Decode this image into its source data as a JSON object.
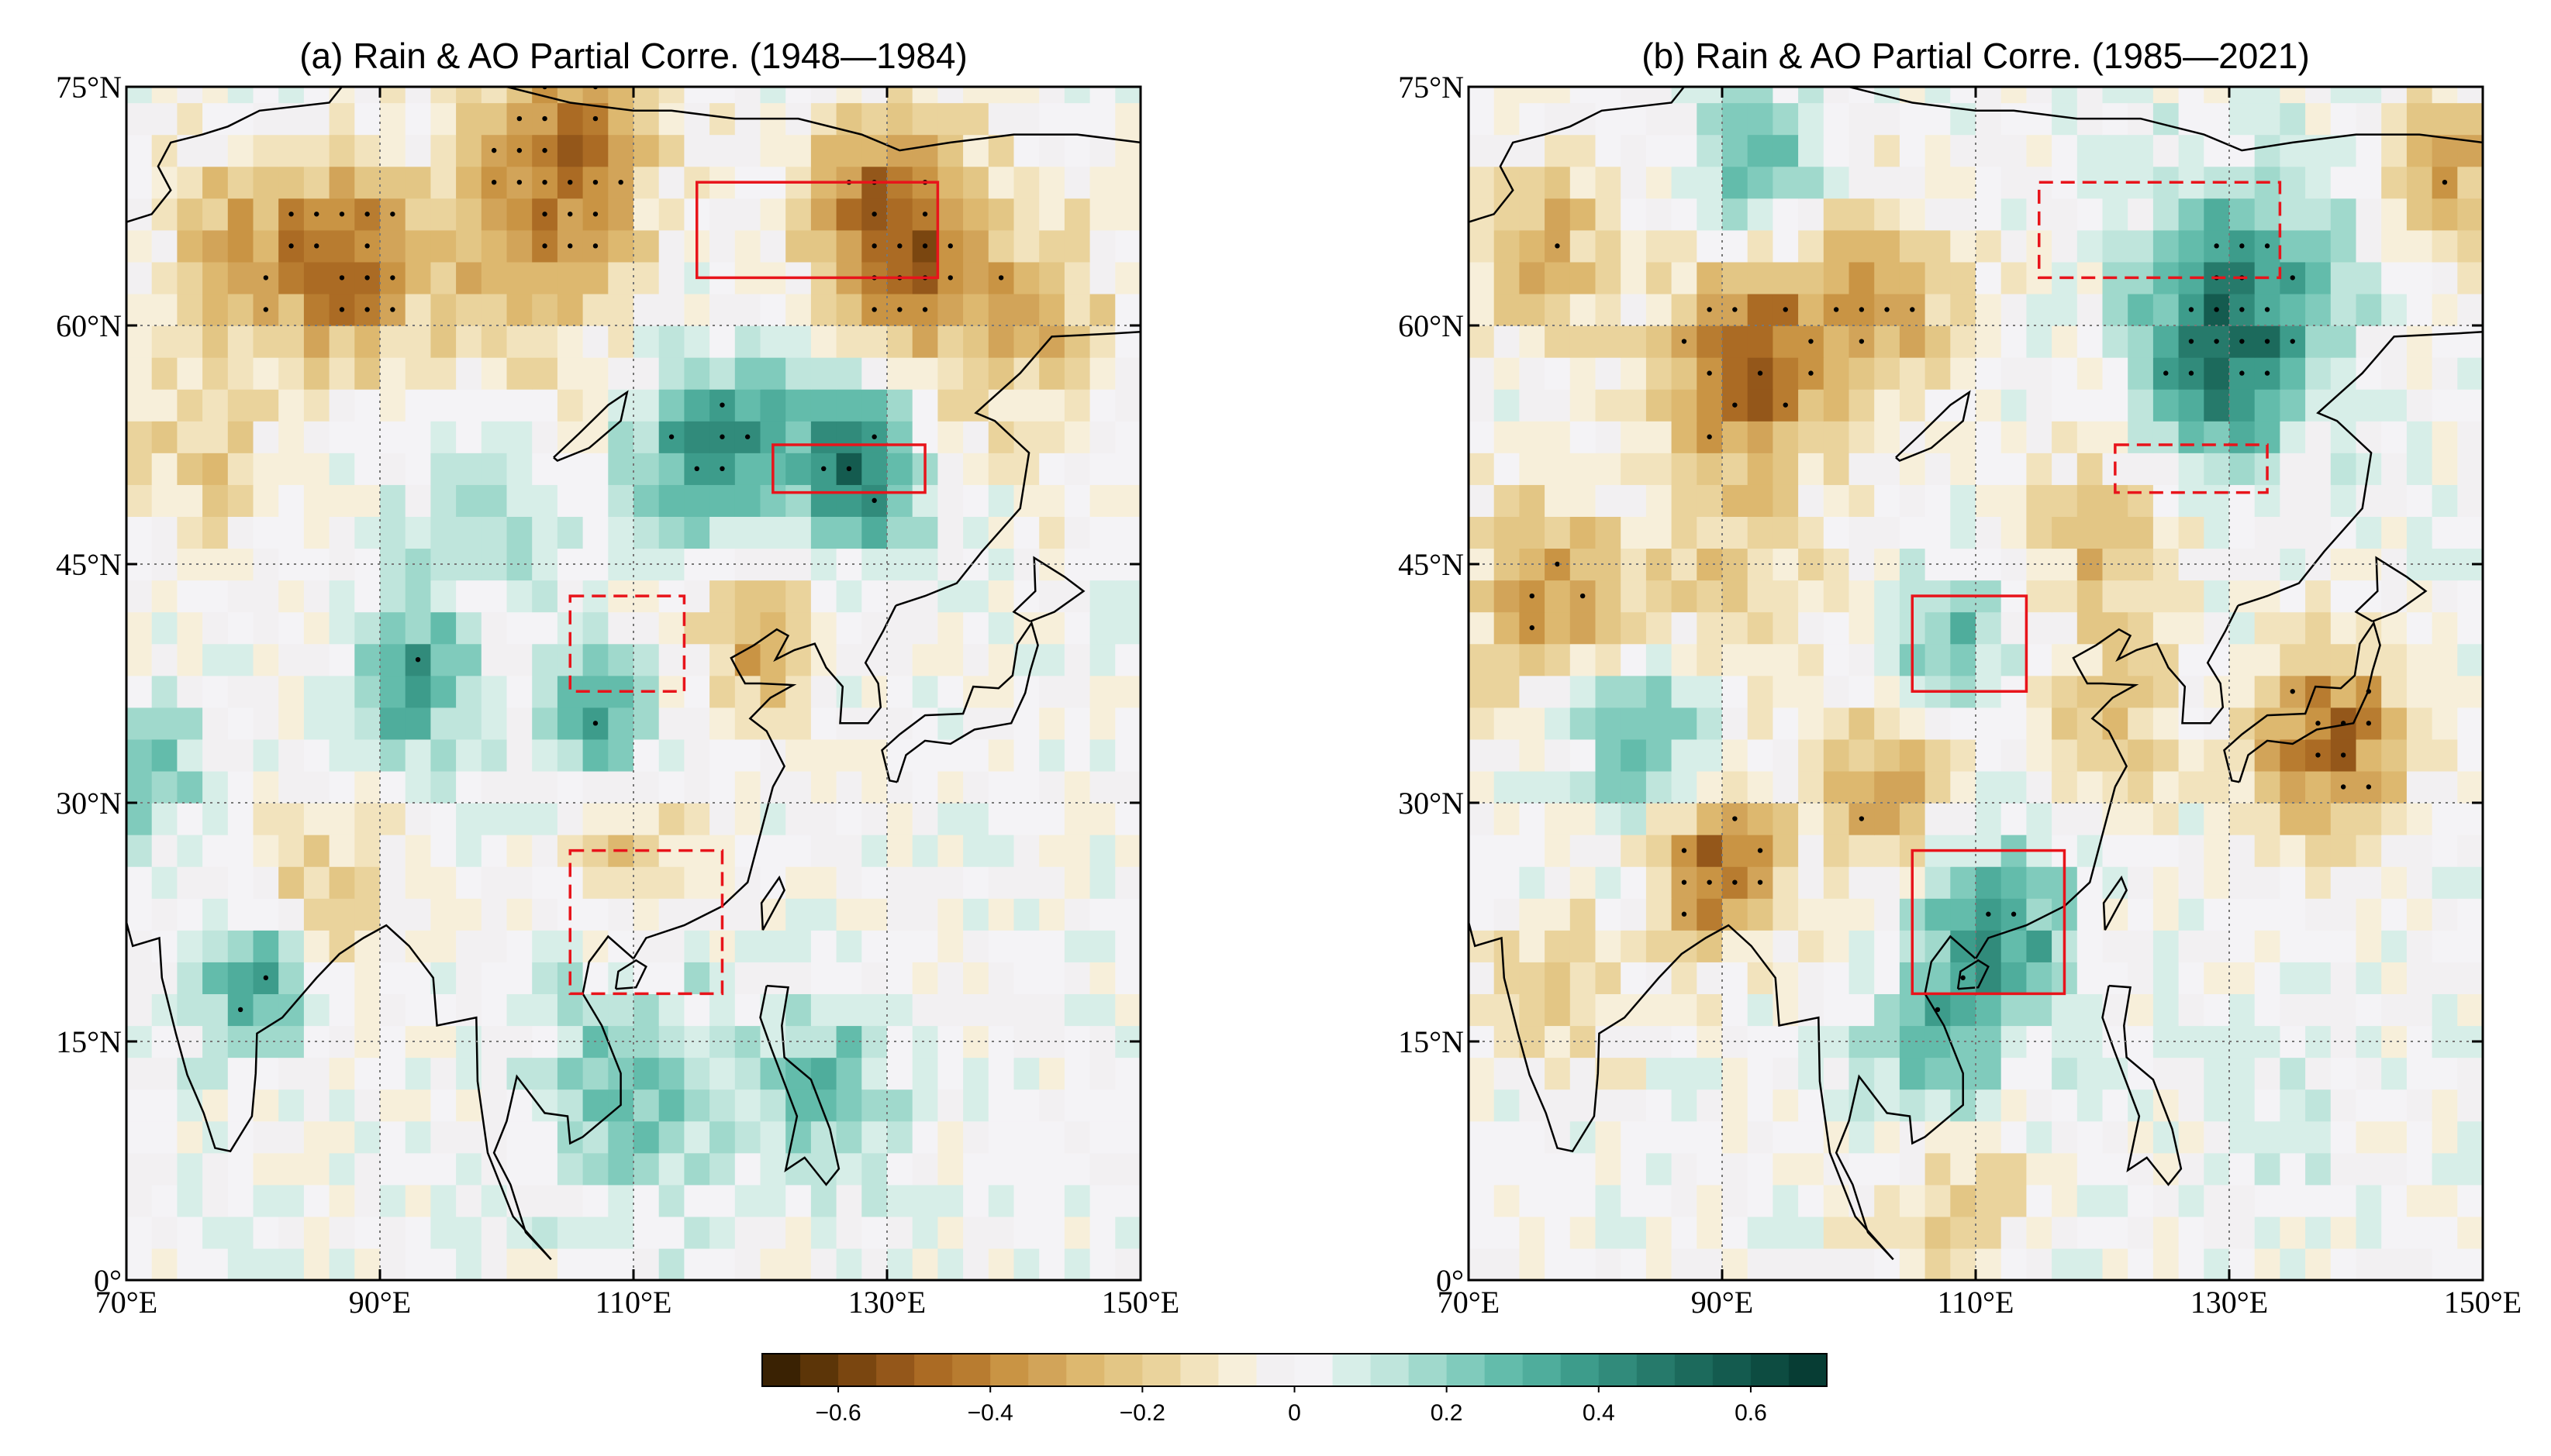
{
  "chart_data": [
    {
      "type": "heatmap",
      "panel": "a",
      "title": "(a) Rain & AO Partial Corre. (1948—1984)",
      "xlim": [
        70,
        150
      ],
      "ylim": [
        0,
        75
      ],
      "xticks": [
        70,
        90,
        110,
        130,
        150
      ],
      "xtick_labels": [
        "70°E",
        "90°E",
        "110°E",
        "130°E",
        "150°E"
      ],
      "yticks": [
        0,
        15,
        30,
        45,
        60,
        75
      ],
      "ytick_labels": [
        "0°",
        "15°N",
        "30°N",
        "45°N",
        "60°N",
        "75°N"
      ],
      "grid": true,
      "regions": [
        {
          "lon": [
            115,
            134
          ],
          "lat": [
            63,
            69
          ],
          "style": "solid"
        },
        {
          "lon": [
            121,
            133
          ],
          "lat": [
            49.5,
            52.5
          ],
          "style": "solid"
        },
        {
          "lon": [
            105,
            114
          ],
          "lat": [
            37,
            43
          ],
          "style": "dashed"
        },
        {
          "lon": [
            105,
            117
          ],
          "lat": [
            18,
            27
          ],
          "style": "dashed"
        }
      ],
      "anomalies": [
        {
          "lon": 130,
          "lat": 66,
          "r": 7,
          "v": -0.5
        },
        {
          "lon": 87,
          "lat": 64,
          "r": 6,
          "v": -0.45
        },
        {
          "lon": 105,
          "lat": 71,
          "r": 7,
          "v": -0.45
        },
        {
          "lon": 78,
          "lat": 65,
          "r": 6,
          "v": -0.25
        },
        {
          "lon": 100,
          "lat": 63,
          "r": 8,
          "v": -0.2
        },
        {
          "lon": 140,
          "lat": 60,
          "r": 8,
          "v": -0.25
        },
        {
          "lon": 76,
          "lat": 52,
          "r": 6,
          "v": -0.2
        },
        {
          "lon": 128,
          "lat": 51,
          "r": 5,
          "v": 0.5
        },
        {
          "lon": 115,
          "lat": 51,
          "r": 5,
          "v": 0.35
        },
        {
          "lon": 92,
          "lat": 38,
          "r": 5,
          "v": 0.35
        },
        {
          "lon": 81,
          "lat": 19,
          "r": 5,
          "v": 0.4
        },
        {
          "lon": 107,
          "lat": 35,
          "r": 4,
          "v": 0.35
        },
        {
          "lon": 120,
          "lat": 55,
          "r": 6,
          "v": 0.2
        },
        {
          "lon": 98,
          "lat": 48,
          "r": 6,
          "v": 0.15
        },
        {
          "lon": 120,
          "lat": 40,
          "r": 5,
          "v": -0.3
        },
        {
          "lon": 85,
          "lat": 24,
          "r": 6,
          "v": -0.25
        },
        {
          "lon": 110,
          "lat": 27,
          "r": 5,
          "v": -0.2
        },
        {
          "lon": 110,
          "lat": 12,
          "r": 8,
          "v": 0.25
        },
        {
          "lon": 125,
          "lat": 12,
          "r": 5,
          "v": 0.3
        },
        {
          "lon": 72,
          "lat": 32,
          "r": 4,
          "v": 0.3
        }
      ]
    },
    {
      "type": "heatmap",
      "panel": "b",
      "title": "(b) Rain & AO Partial Corre. (1985—2021)",
      "xlim": [
        70,
        150
      ],
      "ylim": [
        0,
        75
      ],
      "xticks": [
        70,
        90,
        110,
        130,
        150
      ],
      "xtick_labels": [
        "70°E",
        "90°E",
        "110°E",
        "130°E",
        "150°E"
      ],
      "yticks": [
        0,
        15,
        30,
        45,
        60,
        75
      ],
      "ytick_labels": [
        "0°",
        "15°N",
        "30°N",
        "45°N",
        "60°N",
        "75°N"
      ],
      "grid": true,
      "regions": [
        {
          "lon": [
            115,
            134
          ],
          "lat": [
            63,
            69
          ],
          "style": "dashed"
        },
        {
          "lon": [
            121,
            133
          ],
          "lat": [
            49.5,
            52.5
          ],
          "style": "dashed"
        },
        {
          "lon": [
            105,
            114
          ],
          "lat": [
            37,
            43
          ],
          "style": "solid"
        },
        {
          "lon": [
            105,
            117
          ],
          "lat": [
            18,
            27
          ],
          "style": "solid"
        }
      ],
      "anomalies": [
        {
          "lon": 92,
          "lat": 58,
          "r": 6,
          "v": -0.55
        },
        {
          "lon": 103,
          "lat": 62,
          "r": 6,
          "v": -0.35
        },
        {
          "lon": 76,
          "lat": 65,
          "r": 6,
          "v": -0.3
        },
        {
          "lon": 132,
          "lat": 62,
          "r": 8,
          "v": 0.35
        },
        {
          "lon": 128,
          "lat": 57,
          "r": 6,
          "v": 0.3
        },
        {
          "lon": 93,
          "lat": 70,
          "r": 5,
          "v": 0.3
        },
        {
          "lon": 147,
          "lat": 70,
          "r": 5,
          "v": -0.35
        },
        {
          "lon": 76,
          "lat": 43,
          "r": 6,
          "v": -0.35
        },
        {
          "lon": 84,
          "lat": 35,
          "r": 5,
          "v": 0.35
        },
        {
          "lon": 108,
          "lat": 40,
          "r": 5,
          "v": 0.25
        },
        {
          "lon": 138,
          "lat": 34,
          "r": 6,
          "v": -0.45
        },
        {
          "lon": 90,
          "lat": 26,
          "r": 5,
          "v": -0.5
        },
        {
          "lon": 112,
          "lat": 22,
          "r": 6,
          "v": 0.35
        },
        {
          "lon": 107,
          "lat": 14,
          "r": 6,
          "v": 0.3
        },
        {
          "lon": 103,
          "lat": 31,
          "r": 5,
          "v": -0.35
        },
        {
          "lon": 120,
          "lat": 35,
          "r": 6,
          "v": -0.2
        },
        {
          "lon": 77,
          "lat": 18,
          "r": 5,
          "v": -0.25
        },
        {
          "lon": 90,
          "lat": 45,
          "r": 8,
          "v": -0.2
        },
        {
          "lon": 120,
          "lat": 47,
          "r": 6,
          "v": -0.25
        },
        {
          "lon": 108,
          "lat": 6,
          "r": 6,
          "v": -0.25
        },
        {
          "lon": 135,
          "lat": 10,
          "r": 4,
          "v": 0.15
        }
      ]
    }
  ],
  "colorbar": {
    "levels": [
      -0.7,
      -0.65,
      -0.6,
      -0.55,
      -0.5,
      -0.45,
      -0.4,
      -0.35,
      -0.3,
      -0.25,
      -0.2,
      -0.15,
      -0.1,
      -0.05,
      0,
      0.05,
      0.1,
      0.15,
      0.2,
      0.25,
      0.3,
      0.35,
      0.4,
      0.45,
      0.5,
      0.55,
      0.6,
      0.65,
      0.7
    ],
    "colors": [
      "#3a2203",
      "#5c3508",
      "#7a4610",
      "#94571a",
      "#ab6b24",
      "#b87c30",
      "#c99444",
      "#d2a459",
      "#ddb86f",
      "#e3c685",
      "#ead39c",
      "#f2e3bd",
      "#f7efda",
      "#f2f0f2",
      "#f4f3f6",
      "#d7eee8",
      "#bfe5dc",
      "#a0d9cc",
      "#80cbbc",
      "#63bcab",
      "#4fad9c",
      "#3d9c8b",
      "#318b7b",
      "#267a6b",
      "#1c6a5c",
      "#145b4f",
      "#0d4c41",
      "#073d34"
    ],
    "tick_values": [
      -0.6,
      -0.4,
      -0.2,
      0,
      0.2,
      0.4,
      0.6
    ],
    "tick_labels": [
      "−0.6",
      "−0.4",
      "−0.2",
      "0",
      "0.2",
      "0.4",
      "0.6"
    ]
  }
}
